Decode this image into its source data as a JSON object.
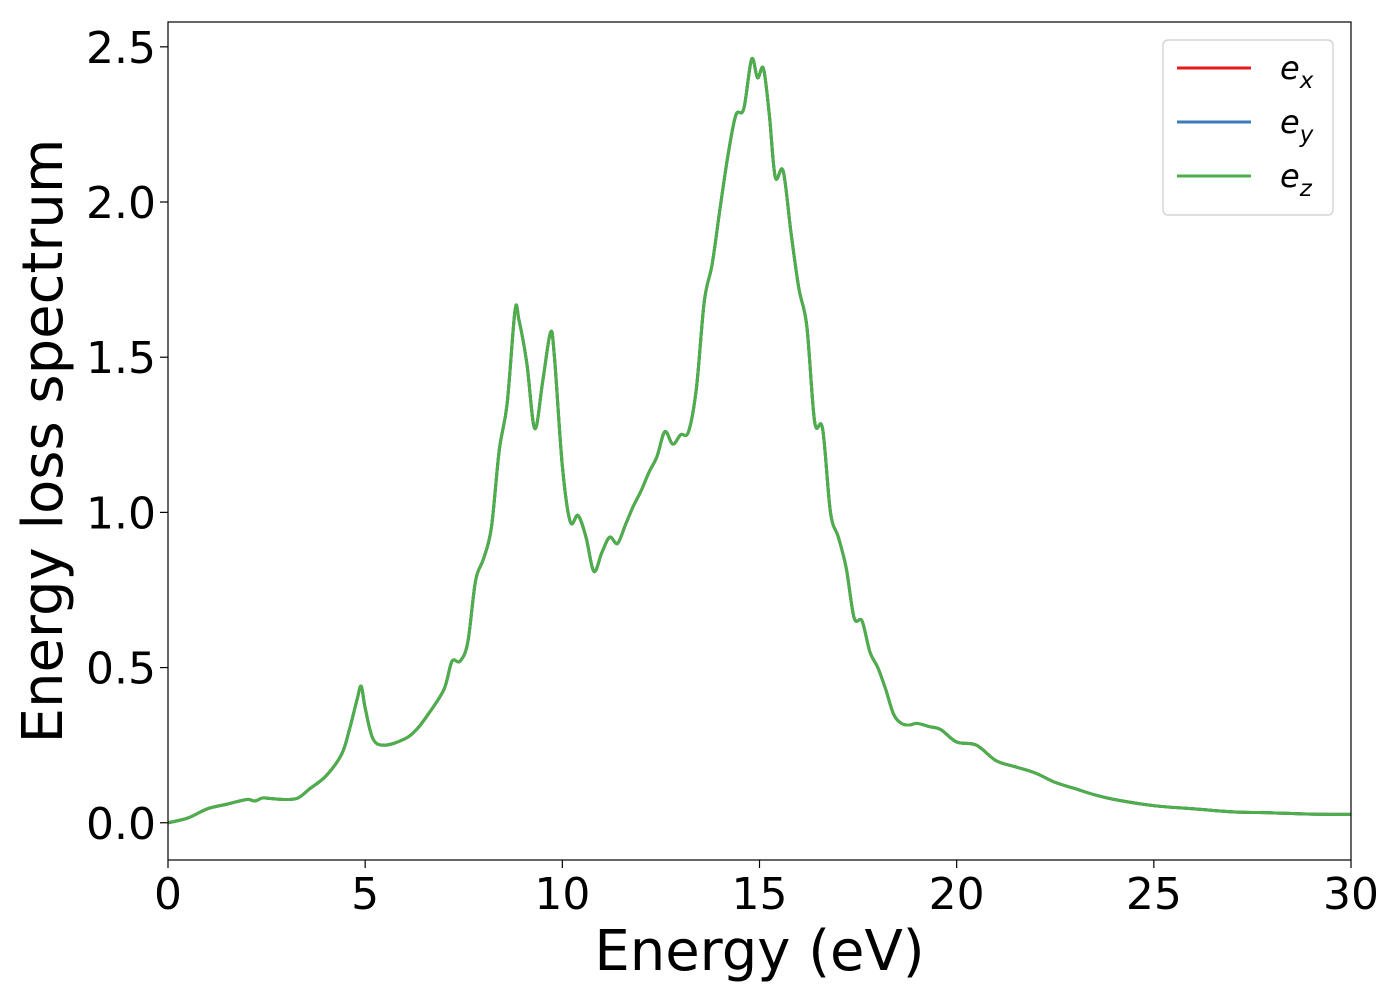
{
  "chart_data": {
    "type": "line",
    "xlabel": "Energy (eV)",
    "ylabel": "Energy loss spectrum",
    "xlim": [
      0,
      30
    ],
    "ylim": [
      -0.12,
      2.58
    ],
    "xticks": [
      0,
      5,
      10,
      15,
      20,
      25,
      30
    ],
    "xtick_labels": [
      "0",
      "5",
      "10",
      "15",
      "20",
      "25",
      "30"
    ],
    "yticks": [
      0.0,
      0.5,
      1.0,
      1.5,
      2.0,
      2.5
    ],
    "ytick_labels": [
      "0.0",
      "0.5",
      "1.0",
      "1.5",
      "2.0",
      "2.5"
    ],
    "grid": false,
    "legend": {
      "position": "top-right",
      "entries": [
        {
          "series": 0,
          "main": "e",
          "sub": "x"
        },
        {
          "series": 1,
          "main": "e",
          "sub": "y"
        },
        {
          "series": 2,
          "main": "e",
          "sub": "z"
        }
      ]
    },
    "x": [
      0,
      0.5,
      1.0,
      1.5,
      2.0,
      2.2,
      2.4,
      2.6,
      3.0,
      3.3,
      3.6,
      4.0,
      4.4,
      4.6,
      4.8,
      4.9,
      5.0,
      5.2,
      5.5,
      6.0,
      6.3,
      6.6,
      7.0,
      7.2,
      7.4,
      7.6,
      7.8,
      8.0,
      8.2,
      8.4,
      8.6,
      8.8,
      8.9,
      9.1,
      9.3,
      9.5,
      9.7,
      9.8,
      10.0,
      10.2,
      10.4,
      10.6,
      10.8,
      11.0,
      11.2,
      11.4,
      11.6,
      11.8,
      12.0,
      12.2,
      12.4,
      12.6,
      12.8,
      13.0,
      13.2,
      13.4,
      13.6,
      13.8,
      14.0,
      14.2,
      14.4,
      14.6,
      14.8,
      14.95,
      15.1,
      15.25,
      15.4,
      15.6,
      15.8,
      16.0,
      16.2,
      16.4,
      16.6,
      16.8,
      17.0,
      17.2,
      17.4,
      17.6,
      17.8,
      18.0,
      18.2,
      18.4,
      18.6,
      18.8,
      19.0,
      19.3,
      19.6,
      20.0,
      20.5,
      21.0,
      21.5,
      22.0,
      22.5,
      23.0,
      23.5,
      24.0,
      25.0,
      26.0,
      27.0,
      28.0,
      29.0,
      30.0
    ],
    "series": [
      {
        "color": "#e41a1c",
        "values": [
          0.0,
          0.015,
          0.045,
          0.06,
          0.075,
          0.07,
          0.08,
          0.078,
          0.075,
          0.08,
          0.11,
          0.15,
          0.22,
          0.3,
          0.4,
          0.44,
          0.37,
          0.27,
          0.25,
          0.27,
          0.3,
          0.35,
          0.43,
          0.52,
          0.52,
          0.58,
          0.78,
          0.85,
          0.95,
          1.2,
          1.35,
          1.65,
          1.62,
          1.48,
          1.27,
          1.42,
          1.58,
          1.5,
          1.15,
          0.97,
          0.99,
          0.92,
          0.81,
          0.87,
          0.92,
          0.9,
          0.96,
          1.02,
          1.07,
          1.13,
          1.18,
          1.26,
          1.22,
          1.25,
          1.26,
          1.4,
          1.68,
          1.8,
          1.98,
          2.15,
          2.28,
          2.3,
          2.46,
          2.4,
          2.43,
          2.28,
          2.08,
          2.1,
          1.9,
          1.72,
          1.6,
          1.29,
          1.27,
          1.0,
          0.92,
          0.82,
          0.66,
          0.65,
          0.55,
          0.5,
          0.43,
          0.35,
          0.32,
          0.315,
          0.32,
          0.31,
          0.3,
          0.26,
          0.25,
          0.2,
          0.18,
          0.16,
          0.13,
          0.11,
          0.09,
          0.075,
          0.055,
          0.045,
          0.035,
          0.032,
          0.028,
          0.027
        ]
      },
      {
        "color": "#377eb8",
        "values": [
          0.0,
          0.015,
          0.045,
          0.06,
          0.075,
          0.07,
          0.08,
          0.078,
          0.075,
          0.08,
          0.11,
          0.15,
          0.22,
          0.3,
          0.4,
          0.44,
          0.37,
          0.27,
          0.25,
          0.27,
          0.3,
          0.35,
          0.43,
          0.52,
          0.52,
          0.58,
          0.78,
          0.85,
          0.95,
          1.2,
          1.35,
          1.65,
          1.62,
          1.48,
          1.27,
          1.42,
          1.58,
          1.5,
          1.15,
          0.97,
          0.99,
          0.92,
          0.81,
          0.87,
          0.92,
          0.9,
          0.96,
          1.02,
          1.07,
          1.13,
          1.18,
          1.26,
          1.22,
          1.25,
          1.26,
          1.4,
          1.68,
          1.8,
          1.98,
          2.15,
          2.28,
          2.3,
          2.46,
          2.4,
          2.43,
          2.28,
          2.08,
          2.1,
          1.9,
          1.72,
          1.6,
          1.29,
          1.27,
          1.0,
          0.92,
          0.82,
          0.66,
          0.65,
          0.55,
          0.5,
          0.43,
          0.35,
          0.32,
          0.315,
          0.32,
          0.31,
          0.3,
          0.26,
          0.25,
          0.2,
          0.18,
          0.16,
          0.13,
          0.11,
          0.09,
          0.075,
          0.055,
          0.045,
          0.035,
          0.032,
          0.028,
          0.027
        ]
      },
      {
        "color": "#4daf4a",
        "values": [
          0.0,
          0.015,
          0.045,
          0.06,
          0.075,
          0.07,
          0.08,
          0.078,
          0.075,
          0.08,
          0.11,
          0.15,
          0.22,
          0.3,
          0.4,
          0.44,
          0.37,
          0.27,
          0.25,
          0.27,
          0.3,
          0.35,
          0.43,
          0.52,
          0.52,
          0.58,
          0.78,
          0.85,
          0.95,
          1.2,
          1.35,
          1.65,
          1.62,
          1.48,
          1.27,
          1.42,
          1.58,
          1.5,
          1.15,
          0.97,
          0.99,
          0.92,
          0.81,
          0.87,
          0.92,
          0.9,
          0.96,
          1.02,
          1.07,
          1.13,
          1.18,
          1.26,
          1.22,
          1.25,
          1.26,
          1.4,
          1.68,
          1.8,
          1.98,
          2.15,
          2.28,
          2.3,
          2.46,
          2.4,
          2.43,
          2.28,
          2.08,
          2.1,
          1.9,
          1.72,
          1.6,
          1.29,
          1.27,
          1.0,
          0.92,
          0.82,
          0.66,
          0.65,
          0.55,
          0.5,
          0.43,
          0.35,
          0.32,
          0.315,
          0.32,
          0.31,
          0.3,
          0.26,
          0.25,
          0.2,
          0.18,
          0.16,
          0.13,
          0.11,
          0.09,
          0.075,
          0.055,
          0.045,
          0.035,
          0.032,
          0.028,
          0.027
        ]
      }
    ]
  }
}
